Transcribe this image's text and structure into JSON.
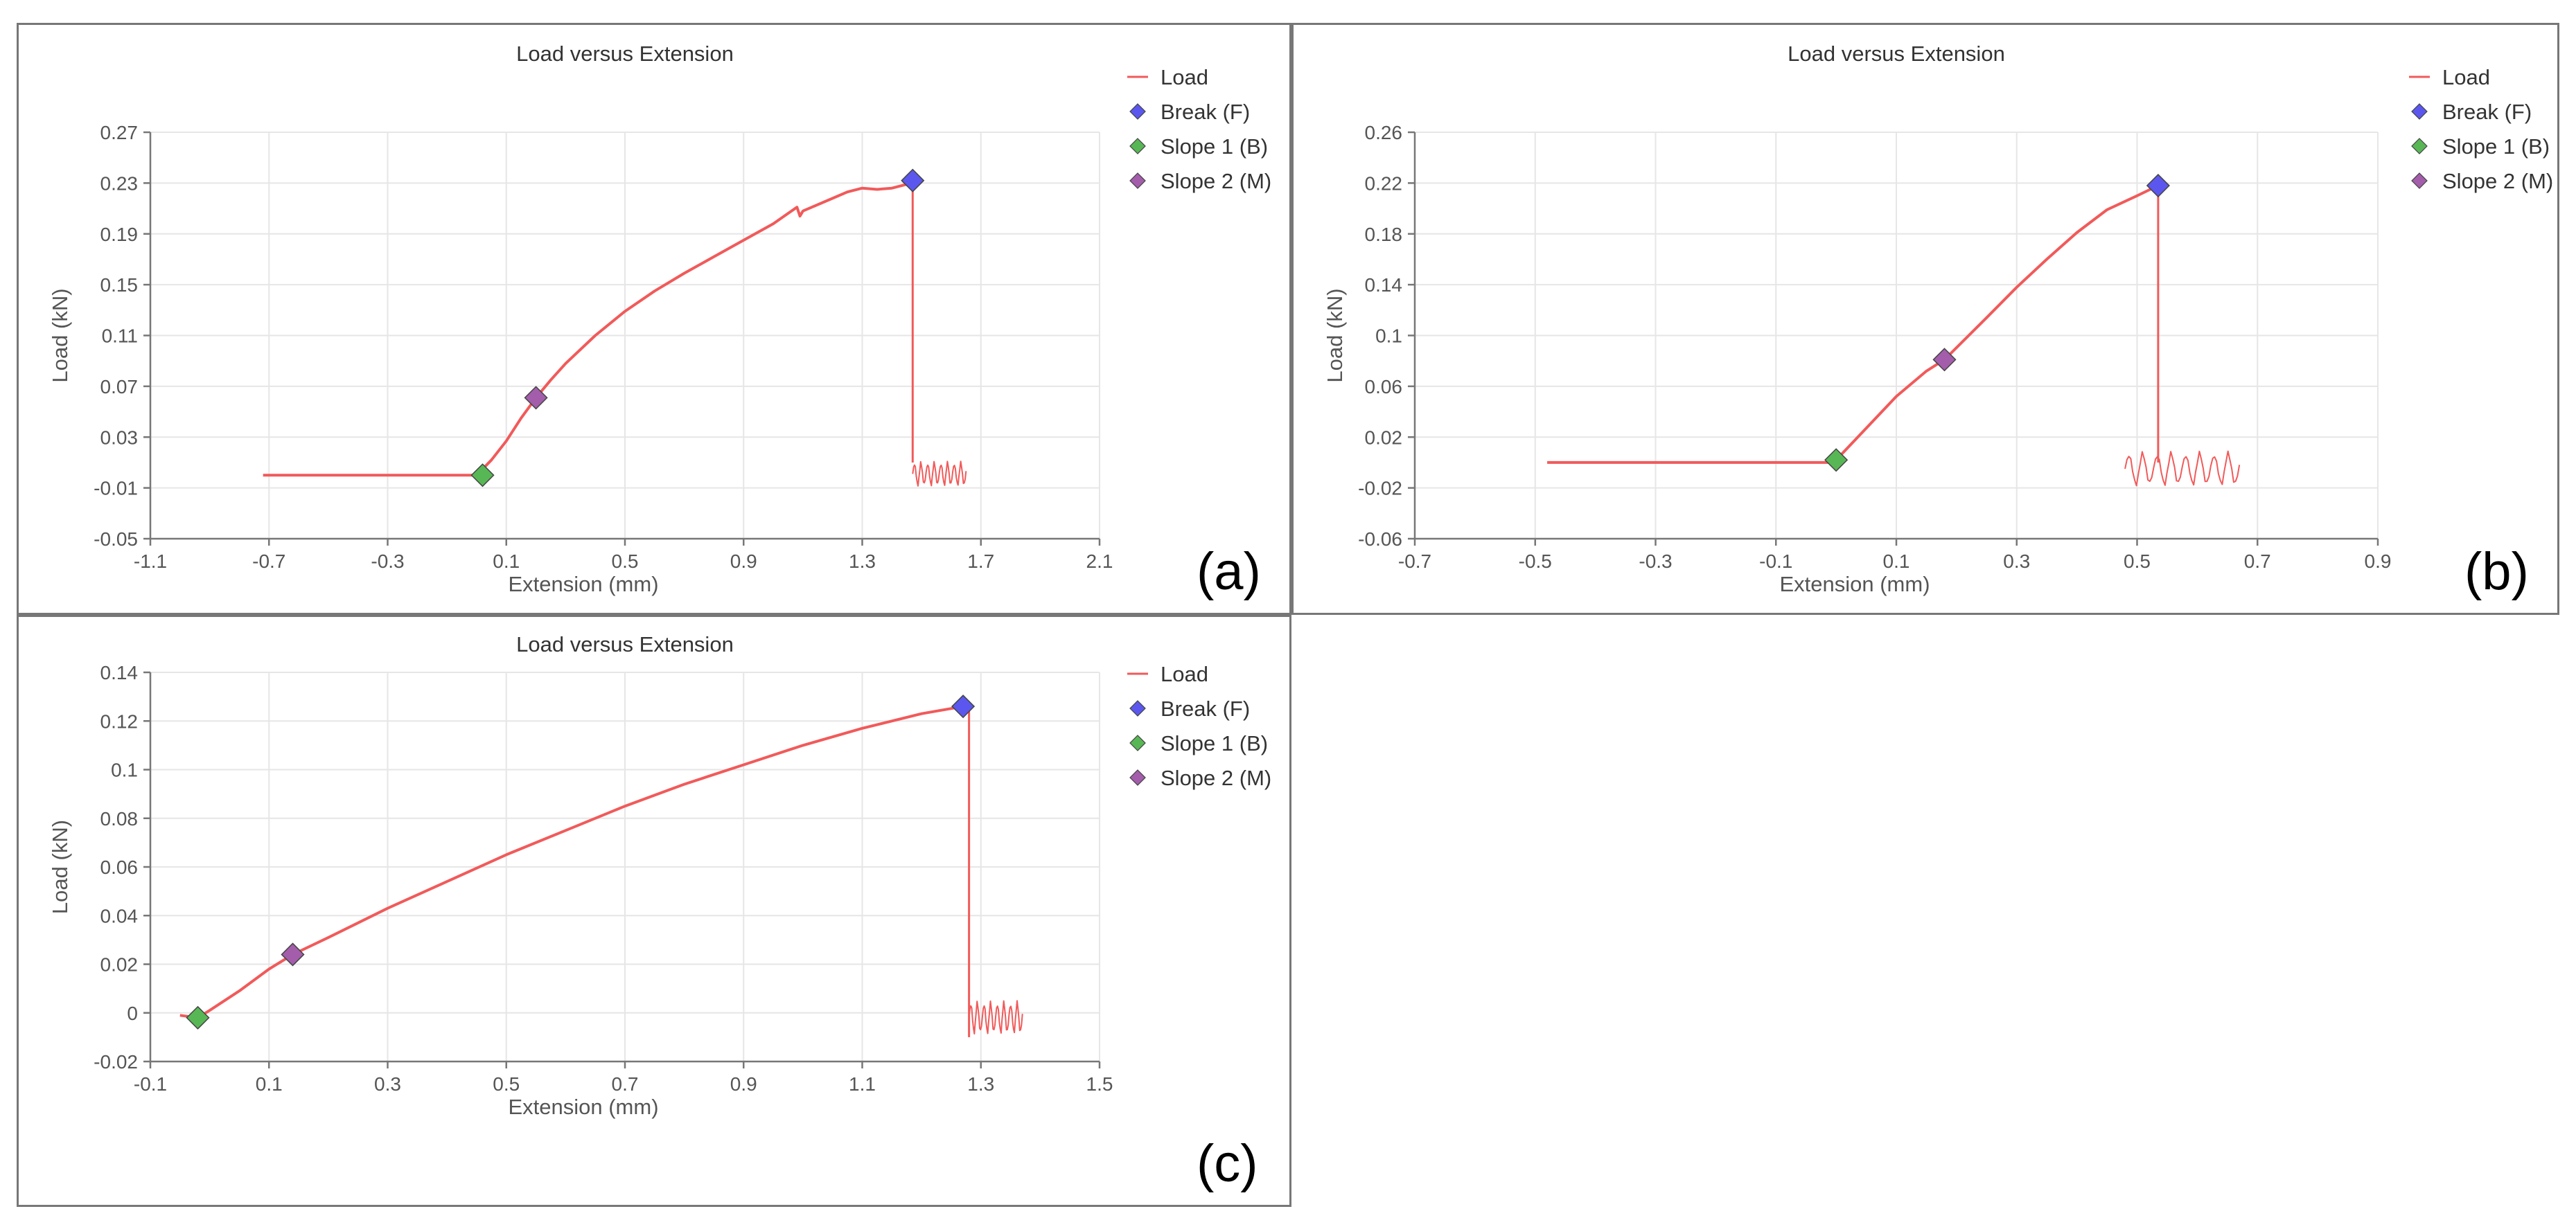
{
  "colors": {
    "load": "#f15a5a",
    "break": "#5b57ee",
    "slope1": "#58b755",
    "slope2": "#a35dab",
    "grid": "#e6e6e6"
  },
  "chart_data": [
    {
      "type": "line",
      "panel_label": "(a)",
      "title": "Load versus Extension",
      "xlabel": "Extension (mm)",
      "ylabel": "Load (kN)",
      "xlim": [
        -1.1,
        2.1
      ],
      "ylim": [
        -0.05,
        0.27
      ],
      "xticks": [
        -1.1,
        -0.7,
        -0.3,
        0.1,
        0.5,
        0.9,
        1.3,
        1.7,
        2.1
      ],
      "xtick_labels": [
        "-1.1",
        "-0.7",
        "-0.3",
        "0.1",
        "0.5",
        "0.9",
        "1.3",
        "1.7",
        "2.1"
      ],
      "yticks": [
        -0.05,
        -0.01,
        0.03,
        0.07,
        0.11,
        0.15,
        0.19,
        0.23,
        0.27
      ],
      "ytick_labels": [
        "-0.05",
        "-0.01",
        "0.03",
        "0.07",
        "0.11",
        "0.15",
        "0.19",
        "0.23",
        "0.27"
      ],
      "legend": [
        "Load",
        "Break (F)",
        "Slope 1 (B)",
        "Slope 2 (M)"
      ],
      "series": [
        {
          "name": "Load",
          "x": [
            -0.72,
            -0.5,
            -0.3,
            -0.1,
            0.0,
            0.05,
            0.1,
            0.15,
            0.2,
            0.25,
            0.3,
            0.4,
            0.5,
            0.6,
            0.7,
            0.8,
            0.9,
            1.0,
            1.08,
            1.09,
            1.1,
            1.2,
            1.25,
            1.3,
            1.35,
            1.4,
            1.45,
            1.47
          ],
          "y": [
            0.0,
            0.0,
            0.0,
            0.0,
            0.0,
            0.012,
            0.027,
            0.045,
            0.061,
            0.075,
            0.088,
            0.11,
            0.129,
            0.145,
            0.159,
            0.172,
            0.185,
            0.198,
            0.211,
            0.204,
            0.208,
            0.218,
            0.223,
            0.226,
            0.225,
            0.226,
            0.229,
            0.232
          ]
        }
      ],
      "drop": {
        "x": 1.47,
        "from": 0.232,
        "to": 0.01
      },
      "noise": {
        "x0": 1.47,
        "x1": 1.65,
        "y_mid": 0.001,
        "amp": 0.01
      },
      "markers": [
        {
          "name": "Break (F)",
          "x": 1.47,
          "y": 0.232,
          "color": "#5b57ee"
        },
        {
          "name": "Slope 1 (B)",
          "x": 0.02,
          "y": 0.0,
          "color": "#58b755"
        },
        {
          "name": "Slope 2 (M)",
          "x": 0.2,
          "y": 0.061,
          "color": "#a35dab"
        }
      ]
    },
    {
      "type": "line",
      "panel_label": "(b)",
      "title": "Load versus Extension",
      "xlabel": "Extension (mm)",
      "ylabel": "Load (kN)",
      "xlim": [
        -0.7,
        0.9
      ],
      "ylim": [
        -0.06,
        0.26
      ],
      "xticks": [
        -0.7,
        -0.5,
        -0.3,
        -0.1,
        0.1,
        0.3,
        0.5,
        0.7,
        0.9
      ],
      "xtick_labels": [
        "-0.7",
        "-0.5",
        "-0.3",
        "-0.1",
        "0.1",
        "0.3",
        "0.5",
        "0.7",
        "0.9"
      ],
      "yticks": [
        -0.06,
        -0.02,
        0.02,
        0.06,
        0.1,
        0.14,
        0.18,
        0.22,
        0.26
      ],
      "ytick_labels": [
        "-0.06",
        "-0.02",
        "0.02",
        "0.06",
        "0.1",
        "0.14",
        "0.18",
        "0.22",
        "0.26"
      ],
      "legend": [
        "Load",
        "Break (F)",
        "Slope 1 (B)",
        "Slope 2 (M)"
      ],
      "series": [
        {
          "name": "Load",
          "x": [
            -0.48,
            -0.4,
            -0.3,
            -0.2,
            -0.1,
            -0.01,
            0.0,
            0.05,
            0.1,
            0.15,
            0.18,
            0.25,
            0.3,
            0.35,
            0.4,
            0.45,
            0.5,
            0.535
          ],
          "y": [
            0.0,
            0.0,
            0.0,
            0.0,
            0.0,
            0.0,
            0.002,
            0.027,
            0.052,
            0.072,
            0.081,
            0.114,
            0.138,
            0.16,
            0.181,
            0.199,
            0.21,
            0.218
          ]
        }
      ],
      "drop": {
        "x": 0.535,
        "from": 0.218,
        "to": 0.0
      },
      "noise": {
        "x0": 0.48,
        "x1": 0.67,
        "y_mid": -0.005,
        "amp": 0.014
      },
      "markers": [
        {
          "name": "Break (F)",
          "x": 0.535,
          "y": 0.218,
          "color": "#5b57ee"
        },
        {
          "name": "Slope 1 (B)",
          "x": 0.0,
          "y": 0.002,
          "color": "#58b755"
        },
        {
          "name": "Slope 2 (M)",
          "x": 0.18,
          "y": 0.081,
          "color": "#a35dab"
        }
      ]
    },
    {
      "type": "line",
      "panel_label": "(c)",
      "title": "Load versus Extension",
      "xlabel": "Extension (mm)",
      "ylabel": "Load (kN)",
      "xlim": [
        -0.1,
        1.5
      ],
      "ylim": [
        -0.02,
        0.14
      ],
      "xticks": [
        -0.1,
        0.1,
        0.3,
        0.5,
        0.7,
        0.9,
        1.1,
        1.3,
        1.5
      ],
      "xtick_labels": [
        "-0.1",
        "0.1",
        "0.3",
        "0.5",
        "0.7",
        "0.9",
        "1.1",
        "1.3",
        "1.5"
      ],
      "yticks": [
        -0.02,
        0.0,
        0.02,
        0.04,
        0.06,
        0.08,
        0.1,
        0.12,
        0.14
      ],
      "ytick_labels": [
        "-0.02",
        "0",
        "0.02",
        "0.04",
        "0.06",
        "0.08",
        "0.1",
        "0.12",
        "0.14"
      ],
      "legend": [
        "Load",
        "Break (F)",
        "Slope 1 (B)",
        "Slope 2 (M)"
      ],
      "series": [
        {
          "name": "Load",
          "x": [
            -0.05,
            -0.02,
            0.0,
            0.05,
            0.1,
            0.14,
            0.2,
            0.3,
            0.4,
            0.5,
            0.6,
            0.7,
            0.8,
            0.9,
            1.0,
            1.1,
            1.2,
            1.27
          ],
          "y": [
            -0.001,
            -0.002,
            0.001,
            0.009,
            0.018,
            0.024,
            0.031,
            0.043,
            0.054,
            0.065,
            0.075,
            0.085,
            0.094,
            0.102,
            0.11,
            0.117,
            0.123,
            0.126
          ]
        }
      ],
      "drop": {
        "x": 1.28,
        "from": 0.126,
        "to": -0.01
      },
      "noise": {
        "x0": 1.28,
        "x1": 1.37,
        "y_mid": -0.002,
        "amp": 0.007
      },
      "markers": [
        {
          "name": "Break (F)",
          "x": 1.27,
          "y": 0.126,
          "color": "#5b57ee"
        },
        {
          "name": "Slope 1 (B)",
          "x": -0.02,
          "y": -0.002,
          "color": "#58b755"
        },
        {
          "name": "Slope 2 (M)",
          "x": 0.14,
          "y": 0.024,
          "color": "#a35dab"
        }
      ]
    }
  ]
}
